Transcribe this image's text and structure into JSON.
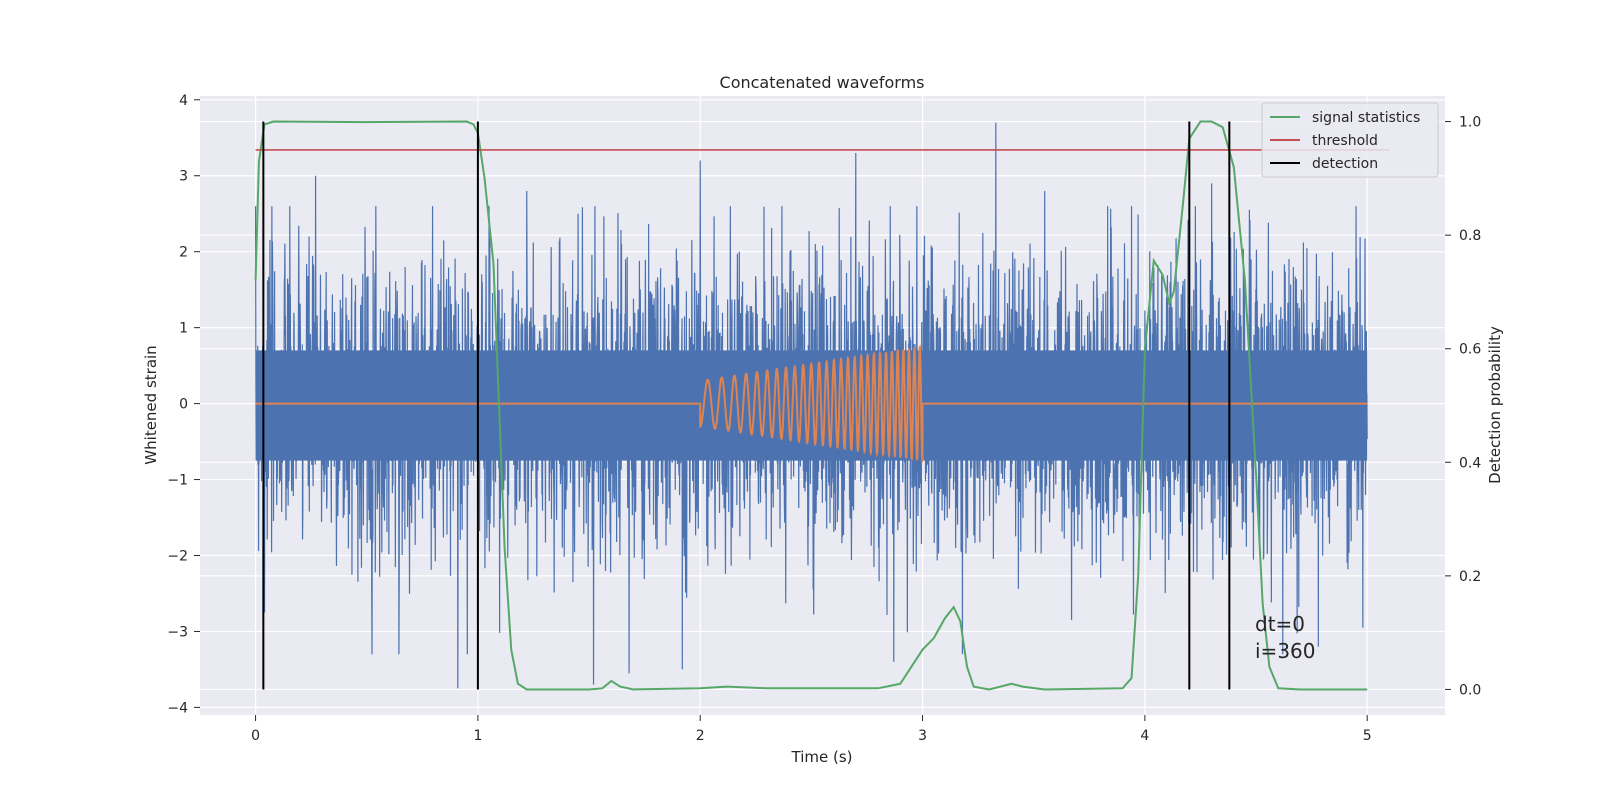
{
  "chart_data": {
    "type": "line",
    "title": "Concatenated waveforms",
    "xlabel": "Time (s)",
    "ylabel": "Whitened strain",
    "y2label": "Detection probability",
    "xlim": [
      -0.25,
      5.35
    ],
    "ylim": [
      -4.1,
      4.05
    ],
    "y2lim": [
      -0.045,
      1.045
    ],
    "xticks": [
      0,
      1,
      2,
      3,
      4,
      5
    ],
    "xtick_labels": [
      "0",
      "1",
      "2",
      "3",
      "4",
      "5"
    ],
    "yticks": [
      -4,
      -3,
      -2,
      -1,
      0,
      1,
      2,
      3,
      4
    ],
    "ytick_labels": [
      "−4",
      "−3",
      "−2",
      "−1",
      "0",
      "1",
      "2",
      "3",
      "4"
    ],
    "y2ticks": [
      0.0,
      0.2,
      0.4,
      0.6,
      0.8,
      1.0
    ],
    "y2tick_labels": [
      "0.0",
      "0.2",
      "0.4",
      "0.6",
      "0.8",
      "1.0"
    ],
    "grid": true,
    "legend_position": "top-right",
    "series": [
      {
        "kind": "noise",
        "axis": "left",
        "color": "#4c72b0",
        "x_range": [
          0,
          5
        ],
        "band": [
          -0.75,
          0.7
        ],
        "peaks": [
          [
            0.27,
            3.0
          ],
          [
            1.05,
            2.6
          ],
          [
            1.22,
            2.8
          ],
          [
            1.45,
            2.5
          ],
          [
            2.0,
            3.2
          ],
          [
            2.7,
            3.3
          ],
          [
            3.33,
            3.7
          ],
          [
            3.55,
            2.8
          ],
          [
            4.3,
            2.9
          ],
          [
            4.95,
            2.6
          ]
        ],
        "troughs": [
          [
            0.04,
            -2.75
          ],
          [
            0.91,
            -3.75
          ],
          [
            1.52,
            -3.7
          ],
          [
            1.68,
            -3.55
          ],
          [
            1.92,
            -3.5
          ],
          [
            2.87,
            -3.4
          ],
          [
            3.18,
            -3.3
          ],
          [
            4.62,
            -3.3
          ],
          [
            4.78,
            -3.2
          ],
          [
            4.98,
            -2.95
          ]
        ]
      },
      {
        "kind": "chirp",
        "axis": "left",
        "color": "#dd8452",
        "x_range": [
          0,
          5
        ],
        "chirp_start": 2.0,
        "chirp_end": 3.0,
        "amp_start": 0.3,
        "amp_end": 0.75,
        "freq_start": 14,
        "freq_end": 42
      },
      {
        "name": "signal statistics",
        "axis": "right",
        "color": "#55a868",
        "points": [
          [
            0.0,
            0.72
          ],
          [
            0.015,
            0.93
          ],
          [
            0.04,
            0.995
          ],
          [
            0.08,
            1.0
          ],
          [
            0.5,
            0.999
          ],
          [
            0.95,
            1.0
          ],
          [
            0.98,
            0.995
          ],
          [
            1.0,
            0.98
          ],
          [
            1.03,
            0.9
          ],
          [
            1.07,
            0.75
          ],
          [
            1.1,
            0.45
          ],
          [
            1.12,
            0.25
          ],
          [
            1.15,
            0.07
          ],
          [
            1.18,
            0.01
          ],
          [
            1.22,
            0.0
          ],
          [
            1.5,
            0.0
          ],
          [
            1.56,
            0.002
          ],
          [
            1.6,
            0.015
          ],
          [
            1.64,
            0.005
          ],
          [
            1.7,
            0.0
          ],
          [
            2.0,
            0.002
          ],
          [
            2.12,
            0.005
          ],
          [
            2.3,
            0.002
          ],
          [
            2.8,
            0.002
          ],
          [
            2.9,
            0.01
          ],
          [
            2.95,
            0.04
          ],
          [
            3.0,
            0.07
          ],
          [
            3.05,
            0.09
          ],
          [
            3.1,
            0.125
          ],
          [
            3.14,
            0.145
          ],
          [
            3.17,
            0.12
          ],
          [
            3.2,
            0.04
          ],
          [
            3.23,
            0.005
          ],
          [
            3.3,
            0.0
          ],
          [
            3.4,
            0.01
          ],
          [
            3.45,
            0.005
          ],
          [
            3.55,
            0.0
          ],
          [
            3.9,
            0.002
          ],
          [
            3.94,
            0.02
          ],
          [
            3.97,
            0.2
          ],
          [
            4.0,
            0.6
          ],
          [
            4.04,
            0.755
          ],
          [
            4.08,
            0.73
          ],
          [
            4.11,
            0.68
          ],
          [
            4.13,
            0.7
          ],
          [
            4.17,
            0.85
          ],
          [
            4.2,
            0.97
          ],
          [
            4.25,
            1.0
          ],
          [
            4.3,
            1.0
          ],
          [
            4.35,
            0.99
          ],
          [
            4.4,
            0.92
          ],
          [
            4.45,
            0.72
          ],
          [
            4.5,
            0.38
          ],
          [
            4.53,
            0.15
          ],
          [
            4.56,
            0.04
          ],
          [
            4.6,
            0.002
          ],
          [
            4.7,
            0.0
          ],
          [
            5.0,
            0.0
          ]
        ]
      },
      {
        "name": "threshold",
        "axis": "right",
        "color": "#c44e52",
        "y": 0.95,
        "x_range": [
          0,
          5.1
        ]
      },
      {
        "name": "detection",
        "axis": "right",
        "color": "#000000",
        "x": [
          0.035,
          1.0,
          4.2,
          4.38
        ],
        "y_range": [
          0.0,
          1.0
        ]
      }
    ],
    "legend": [
      "signal statistics",
      "threshold",
      "detection"
    ],
    "annotations": [
      "dt=0",
      "i=360"
    ]
  }
}
